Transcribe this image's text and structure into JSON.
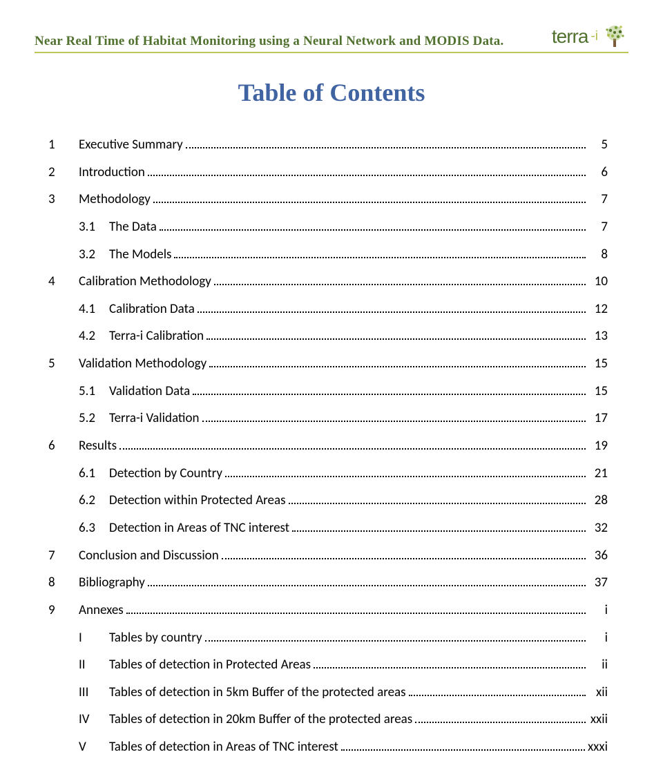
{
  "header": {
    "doc_title": "Near Real Time of Habitat Monitoring using a Neural Network and MODIS Data.",
    "logo_text": "terra",
    "logo_suffix": "-i",
    "divider_color": "#bcc558",
    "title_color": "#51712f"
  },
  "main_heading": "Table of Contents",
  "heading_color": "#4063a1",
  "toc": [
    {
      "num": "1",
      "label": "Executive Summary",
      "page": "5",
      "level": 0
    },
    {
      "num": "2",
      "label": "Introduction",
      "page": "6",
      "level": 0
    },
    {
      "num": "3",
      "label": "Methodology",
      "page": "7",
      "level": 0
    },
    {
      "num": "3.1",
      "label": "The Data",
      "page": "7",
      "level": 1
    },
    {
      "num": "3.2",
      "label": "The Models",
      "page": "8",
      "level": 1
    },
    {
      "num": "4",
      "label": "Calibration Methodology",
      "page": "10",
      "level": 0
    },
    {
      "num": "4.1",
      "label": "Calibration Data",
      "page": "12",
      "level": 1
    },
    {
      "num": "4.2",
      "label": "Terra-i Calibration",
      "page": "13",
      "level": 1
    },
    {
      "num": "5",
      "label": "Validation Methodology",
      "page": "15",
      "level": 0
    },
    {
      "num": "5.1",
      "label": "Validation Data",
      "page": "15",
      "level": 1
    },
    {
      "num": "5.2",
      "label": "Terra-i Validation",
      "page": "17",
      "level": 1
    },
    {
      "num": "6",
      "label": "Results",
      "page": "19",
      "level": 0
    },
    {
      "num": "6.1",
      "label": "Detection by Country",
      "page": "21",
      "level": 1
    },
    {
      "num": "6.2",
      "label": "Detection within Protected Areas",
      "page": "28",
      "level": 1
    },
    {
      "num": "6.3",
      "label": "Detection in Areas of TNC interest",
      "page": "32",
      "level": 1
    },
    {
      "num": "7",
      "label": "Conclusion and Discussion",
      "page": "36",
      "level": 0
    },
    {
      "num": "8",
      "label": "Bibliography",
      "page": "37",
      "level": 0
    },
    {
      "num": "9",
      "label": "Annexes",
      "page": "i",
      "level": 0
    },
    {
      "num": "I",
      "label": "Tables by country",
      "page": "i",
      "level": 1
    },
    {
      "num": "II",
      "label": "Tables of detection in Protected Areas",
      "page": "ii",
      "level": 1
    },
    {
      "num": "III",
      "label": "Tables of detection in 5km Buffer of the protected areas",
      "page": "xii",
      "level": 1
    },
    {
      "num": "IV",
      "label": "Tables of detection in 20km Buffer of the protected areas",
      "page": "xxii",
      "level": 1
    },
    {
      "num": "V",
      "label": "Tables of detection in Areas of TNC interest",
      "page": "xxxi",
      "level": 1
    }
  ],
  "font_sizes": {
    "body": 19,
    "heading": 36,
    "header_title": 19,
    "logo": 28
  },
  "background_color": "#ffffff",
  "text_color": "#000000"
}
